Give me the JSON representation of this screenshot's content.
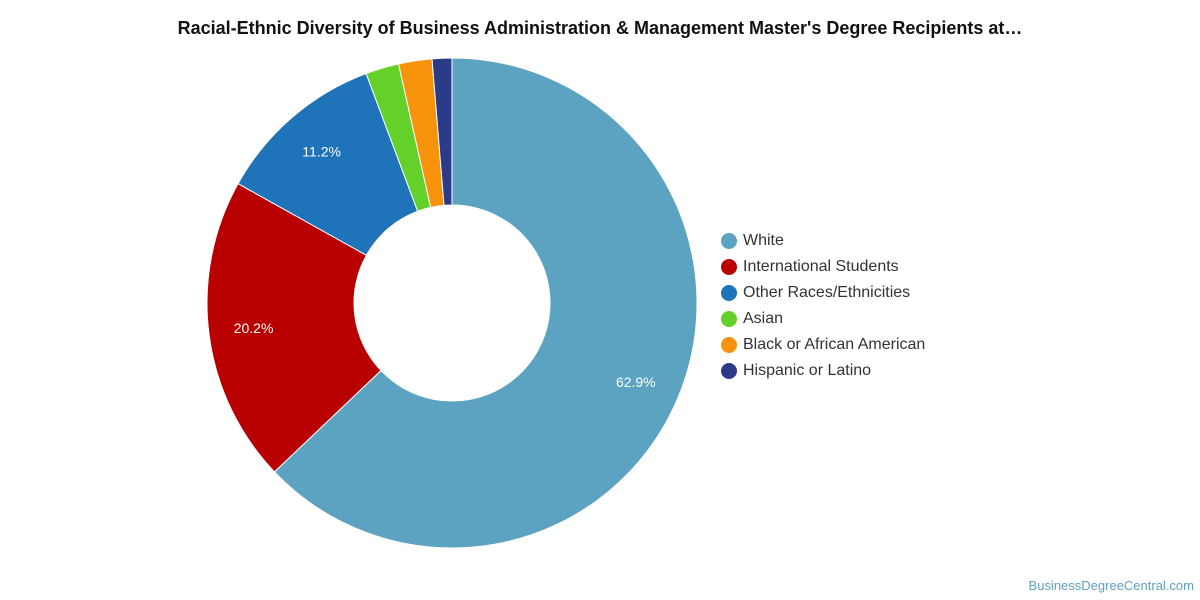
{
  "chart_data": {
    "type": "pie",
    "donut": true,
    "title": "Racial-Ethnic Diversity of Business Administration & Management Master's Degree Recipients at…",
    "legend_position": "right",
    "slices": [
      {
        "label": "White",
        "value": 62.9,
        "display": "62.9%",
        "color": "#5ba3c0"
      },
      {
        "label": "International Students",
        "value": 20.2,
        "display": "20.2%",
        "color": "#b80000"
      },
      {
        "label": "Other Races/Ethnicities",
        "value": 11.2,
        "display": "11.2%",
        "color": "#1e73b9"
      },
      {
        "label": "Asian",
        "value": 2.2,
        "display": "",
        "color": "#63d12a"
      },
      {
        "label": "Black or African American",
        "value": 2.2,
        "display": "",
        "color": "#f7930a"
      },
      {
        "label": "Hispanic or Latino",
        "value": 1.3,
        "display": "",
        "color": "#2c3a8a"
      }
    ]
  },
  "footer": {
    "credit": "BusinessDegreeCentral.com"
  }
}
